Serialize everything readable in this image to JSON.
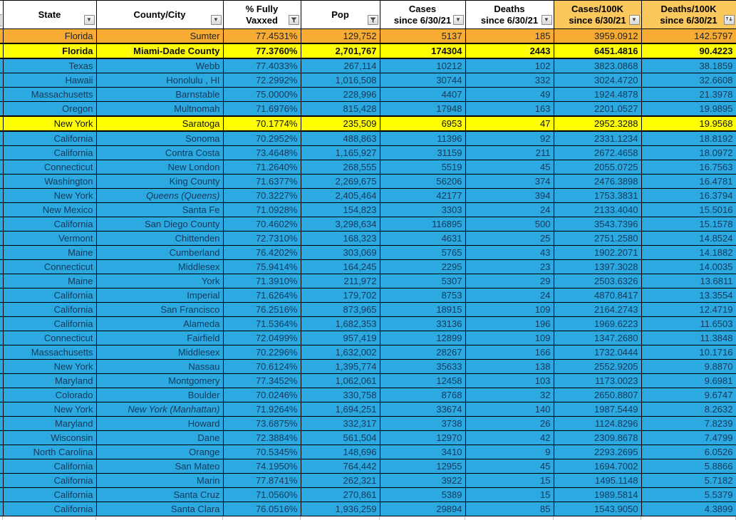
{
  "colors": {
    "row_blue": "#2BA9E0",
    "row_orange": "#F8AC33",
    "row_yellow": "#FFFF00",
    "header_white": "#FFFFFF",
    "header_orange": "#FBC85E",
    "gridline": "#000000",
    "blue_row_text": "#14395C"
  },
  "table": {
    "columns": [
      {
        "id": "stub",
        "lines": [],
        "icon": null,
        "header_bg": "header_white"
      },
      {
        "id": "state",
        "lines": [
          "State"
        ],
        "icon": "dropdown-icon",
        "header_bg": "header_white"
      },
      {
        "id": "county",
        "lines": [
          "County/City"
        ],
        "icon": "dropdown-icon",
        "header_bg": "header_white"
      },
      {
        "id": "vaxxed",
        "lines": [
          "% Fully",
          "Vaxxed"
        ],
        "icon": "filter-icon",
        "header_bg": "header_white"
      },
      {
        "id": "pop",
        "lines": [
          "Pop"
        ],
        "icon": "filter-icon",
        "header_bg": "header_white"
      },
      {
        "id": "cases",
        "lines": [
          "Cases",
          "since 6/30/21"
        ],
        "icon": "dropdown-icon",
        "header_bg": "header_white"
      },
      {
        "id": "deaths",
        "lines": [
          "Deaths",
          "since 6/30/21"
        ],
        "icon": "dropdown-icon",
        "header_bg": "header_white"
      },
      {
        "id": "cases100k",
        "lines": [
          "Cases/100K",
          "since 6/30/21"
        ],
        "icon": "dropdown-icon",
        "header_bg": "header_orange"
      },
      {
        "id": "deaths100k",
        "lines": [
          "Deaths/100K",
          "since 6/30/21"
        ],
        "icon": "sort-descending-icon",
        "header_bg": "header_orange"
      }
    ],
    "rows": [
      {
        "state": "Florida",
        "county": "Sumter",
        "vaxxed": "77.4531%",
        "pop": "129,752",
        "cases": "5137",
        "deaths": "185",
        "cases100k": "3959.0912",
        "deaths100k": "142.5797",
        "highlight": "orange",
        "bold": false,
        "thick_border": false,
        "county_italic": false
      },
      {
        "state": "Florida",
        "county": "Miami-Dade County",
        "vaxxed": "77.3760%",
        "pop": "2,701,767",
        "cases": "174304",
        "deaths": "2443",
        "cases100k": "6451.4816",
        "deaths100k": "90.4223",
        "highlight": "yellow",
        "bold": true,
        "thick_border": true,
        "county_italic": false
      },
      {
        "state": "Texas",
        "county": "Webb",
        "vaxxed": "77.4033%",
        "pop": "267,114",
        "cases": "10212",
        "deaths": "102",
        "cases100k": "3823.0868",
        "deaths100k": "38.1859",
        "highlight": null,
        "bold": false,
        "thick_border": false,
        "county_italic": false
      },
      {
        "state": "Hawaii",
        "county": "Honolulu , HI",
        "vaxxed": "72.2992%",
        "pop": "1,016,508",
        "cases": "30744",
        "deaths": "332",
        "cases100k": "3024.4720",
        "deaths100k": "32.6608",
        "highlight": null,
        "bold": false,
        "thick_border": false,
        "county_italic": false
      },
      {
        "state": "Massachusetts",
        "county": "Barnstable",
        "vaxxed": "75.0000%",
        "pop": "228,996",
        "cases": "4407",
        "deaths": "49",
        "cases100k": "1924.4878",
        "deaths100k": "21.3978",
        "highlight": null,
        "bold": false,
        "thick_border": false,
        "county_italic": false
      },
      {
        "state": "Oregon",
        "county": "Multnomah",
        "vaxxed": "71.6976%",
        "pop": "815,428",
        "cases": "17948",
        "deaths": "163",
        "cases100k": "2201.0527",
        "deaths100k": "19.9895",
        "highlight": null,
        "bold": false,
        "thick_border": false,
        "county_italic": false
      },
      {
        "state": "New York",
        "county": "Saratoga",
        "vaxxed": "70.1774%",
        "pop": "235,509",
        "cases": "6953",
        "deaths": "47",
        "cases100k": "2952.3288",
        "deaths100k": "19.9568",
        "highlight": "yellow",
        "bold": false,
        "thick_border": true,
        "county_italic": false
      },
      {
        "state": "California",
        "county": "Sonoma",
        "vaxxed": "70.2952%",
        "pop": "488,863",
        "cases": "11396",
        "deaths": "92",
        "cases100k": "2331.1234",
        "deaths100k": "18.8192",
        "highlight": null,
        "bold": false,
        "thick_border": false,
        "county_italic": false
      },
      {
        "state": "California",
        "county": "Contra Costa",
        "vaxxed": "73.4648%",
        "pop": "1,165,927",
        "cases": "31159",
        "deaths": "211",
        "cases100k": "2672.4658",
        "deaths100k": "18.0972",
        "highlight": null,
        "bold": false,
        "thick_border": false,
        "county_italic": false
      },
      {
        "state": "Connecticut",
        "county": "New London",
        "vaxxed": "71.2640%",
        "pop": "268,555",
        "cases": "5519",
        "deaths": "45",
        "cases100k": "2055.0725",
        "deaths100k": "16.7563",
        "highlight": null,
        "bold": false,
        "thick_border": false,
        "county_italic": false
      },
      {
        "state": "Washington",
        "county": "King County",
        "vaxxed": "71.6377%",
        "pop": "2,269,675",
        "cases": "56206",
        "deaths": "374",
        "cases100k": "2476.3898",
        "deaths100k": "16.4781",
        "highlight": null,
        "bold": false,
        "thick_border": false,
        "county_italic": false
      },
      {
        "state": "New York",
        "county": "Queens  (Queens)",
        "vaxxed": "70.3227%",
        "pop": "2,405,464",
        "cases": "42177",
        "deaths": "394",
        "cases100k": "1753.3831",
        "deaths100k": "16.3794",
        "highlight": null,
        "bold": false,
        "thick_border": false,
        "county_italic": true
      },
      {
        "state": "New Mexico",
        "county": "Santa Fe",
        "vaxxed": "71.0928%",
        "pop": "154,823",
        "cases": "3303",
        "deaths": "24",
        "cases100k": "2133.4040",
        "deaths100k": "15.5016",
        "highlight": null,
        "bold": false,
        "thick_border": false,
        "county_italic": false
      },
      {
        "state": "California",
        "county": "San Diego County",
        "vaxxed": "70.4602%",
        "pop": "3,298,634",
        "cases": "116895",
        "deaths": "500",
        "cases100k": "3543.7396",
        "deaths100k": "15.1578",
        "highlight": null,
        "bold": false,
        "thick_border": false,
        "county_italic": false
      },
      {
        "state": "Vermont",
        "county": "Chittenden",
        "vaxxed": "72.7310%",
        "pop": "168,323",
        "cases": "4631",
        "deaths": "25",
        "cases100k": "2751.2580",
        "deaths100k": "14.8524",
        "highlight": null,
        "bold": false,
        "thick_border": false,
        "county_italic": false
      },
      {
        "state": "Maine",
        "county": "Cumberland",
        "vaxxed": "76.4202%",
        "pop": "303,069",
        "cases": "5765",
        "deaths": "43",
        "cases100k": "1902.2071",
        "deaths100k": "14.1882",
        "highlight": null,
        "bold": false,
        "thick_border": false,
        "county_italic": false
      },
      {
        "state": "Connecticut",
        "county": "Middlesex",
        "vaxxed": "75.9414%",
        "pop": "164,245",
        "cases": "2295",
        "deaths": "23",
        "cases100k": "1397.3028",
        "deaths100k": "14.0035",
        "highlight": null,
        "bold": false,
        "thick_border": false,
        "county_italic": false
      },
      {
        "state": "Maine",
        "county": "York",
        "vaxxed": "71.3910%",
        "pop": "211,972",
        "cases": "5307",
        "deaths": "29",
        "cases100k": "2503.6326",
        "deaths100k": "13.6811",
        "highlight": null,
        "bold": false,
        "thick_border": false,
        "county_italic": false
      },
      {
        "state": "California",
        "county": "Imperial",
        "vaxxed": "71.6264%",
        "pop": "179,702",
        "cases": "8753",
        "deaths": "24",
        "cases100k": "4870.8417",
        "deaths100k": "13.3554",
        "highlight": null,
        "bold": false,
        "thick_border": false,
        "county_italic": false
      },
      {
        "state": "California",
        "county": "San Francisco",
        "vaxxed": "76.2516%",
        "pop": "873,965",
        "cases": "18915",
        "deaths": "109",
        "cases100k": "2164.2743",
        "deaths100k": "12.4719",
        "highlight": null,
        "bold": false,
        "thick_border": false,
        "county_italic": false
      },
      {
        "state": "California",
        "county": "Alameda",
        "vaxxed": "71.5364%",
        "pop": "1,682,353",
        "cases": "33136",
        "deaths": "196",
        "cases100k": "1969.6223",
        "deaths100k": "11.6503",
        "highlight": null,
        "bold": false,
        "thick_border": false,
        "county_italic": false
      },
      {
        "state": "Connecticut",
        "county": "Fairfield",
        "vaxxed": "72.0499%",
        "pop": "957,419",
        "cases": "12899",
        "deaths": "109",
        "cases100k": "1347.2680",
        "deaths100k": "11.3848",
        "highlight": null,
        "bold": false,
        "thick_border": false,
        "county_italic": false
      },
      {
        "state": "Massachusetts",
        "county": "Middlesex",
        "vaxxed": "70.2296%",
        "pop": "1,632,002",
        "cases": "28267",
        "deaths": "166",
        "cases100k": "1732.0444",
        "deaths100k": "10.1716",
        "highlight": null,
        "bold": false,
        "thick_border": false,
        "county_italic": false
      },
      {
        "state": "New York",
        "county": "Nassau",
        "vaxxed": "70.6124%",
        "pop": "1,395,774",
        "cases": "35633",
        "deaths": "138",
        "cases100k": "2552.9205",
        "deaths100k": "9.8870",
        "highlight": null,
        "bold": false,
        "thick_border": false,
        "county_italic": false
      },
      {
        "state": "Maryland",
        "county": "Montgomery",
        "vaxxed": "77.3452%",
        "pop": "1,062,061",
        "cases": "12458",
        "deaths": "103",
        "cases100k": "1173.0023",
        "deaths100k": "9.6981",
        "highlight": null,
        "bold": false,
        "thick_border": false,
        "county_italic": false
      },
      {
        "state": "Colorado",
        "county": "Boulder",
        "vaxxed": "70.0246%",
        "pop": "330,758",
        "cases": "8768",
        "deaths": "32",
        "cases100k": "2650.8807",
        "deaths100k": "9.6747",
        "highlight": null,
        "bold": false,
        "thick_border": false,
        "county_italic": false
      },
      {
        "state": "New York",
        "county": "New York  (Manhattan)",
        "vaxxed": "71.9264%",
        "pop": "1,694,251",
        "cases": "33674",
        "deaths": "140",
        "cases100k": "1987.5449",
        "deaths100k": "8.2632",
        "highlight": null,
        "bold": false,
        "thick_border": false,
        "county_italic": true
      },
      {
        "state": "Maryland",
        "county": "Howard",
        "vaxxed": "73.6875%",
        "pop": "332,317",
        "cases": "3738",
        "deaths": "26",
        "cases100k": "1124.8296",
        "deaths100k": "7.8239",
        "highlight": null,
        "bold": false,
        "thick_border": false,
        "county_italic": false
      },
      {
        "state": "Wisconsin",
        "county": "Dane",
        "vaxxed": "72.3884%",
        "pop": "561,504",
        "cases": "12970",
        "deaths": "42",
        "cases100k": "2309.8678",
        "deaths100k": "7.4799",
        "highlight": null,
        "bold": false,
        "thick_border": false,
        "county_italic": false
      },
      {
        "state": "North Carolina",
        "county": "Orange",
        "vaxxed": "70.5345%",
        "pop": "148,696",
        "cases": "3410",
        "deaths": "9",
        "cases100k": "2293.2695",
        "deaths100k": "6.0526",
        "highlight": null,
        "bold": false,
        "thick_border": false,
        "county_italic": false
      },
      {
        "state": "California",
        "county": "San Mateo",
        "vaxxed": "74.1950%",
        "pop": "764,442",
        "cases": "12955",
        "deaths": "45",
        "cases100k": "1694.7002",
        "deaths100k": "5.8866",
        "highlight": null,
        "bold": false,
        "thick_border": false,
        "county_italic": false
      },
      {
        "state": "California",
        "county": "Marin",
        "vaxxed": "77.8741%",
        "pop": "262,321",
        "cases": "3922",
        "deaths": "15",
        "cases100k": "1495.1148",
        "deaths100k": "5.7182",
        "highlight": null,
        "bold": false,
        "thick_border": false,
        "county_italic": false
      },
      {
        "state": "California",
        "county": "Santa Cruz",
        "vaxxed": "71.0560%",
        "pop": "270,861",
        "cases": "5389",
        "deaths": "15",
        "cases100k": "1989.5814",
        "deaths100k": "5.5379",
        "highlight": null,
        "bold": false,
        "thick_border": false,
        "county_italic": false
      },
      {
        "state": "California",
        "county": "Santa Clara",
        "vaxxed": "76.0516%",
        "pop": "1,936,259",
        "cases": "29894",
        "deaths": "85",
        "cases100k": "1543.9050",
        "deaths100k": "4.3899",
        "highlight": null,
        "bold": false,
        "thick_border": false,
        "county_italic": false
      }
    ]
  }
}
